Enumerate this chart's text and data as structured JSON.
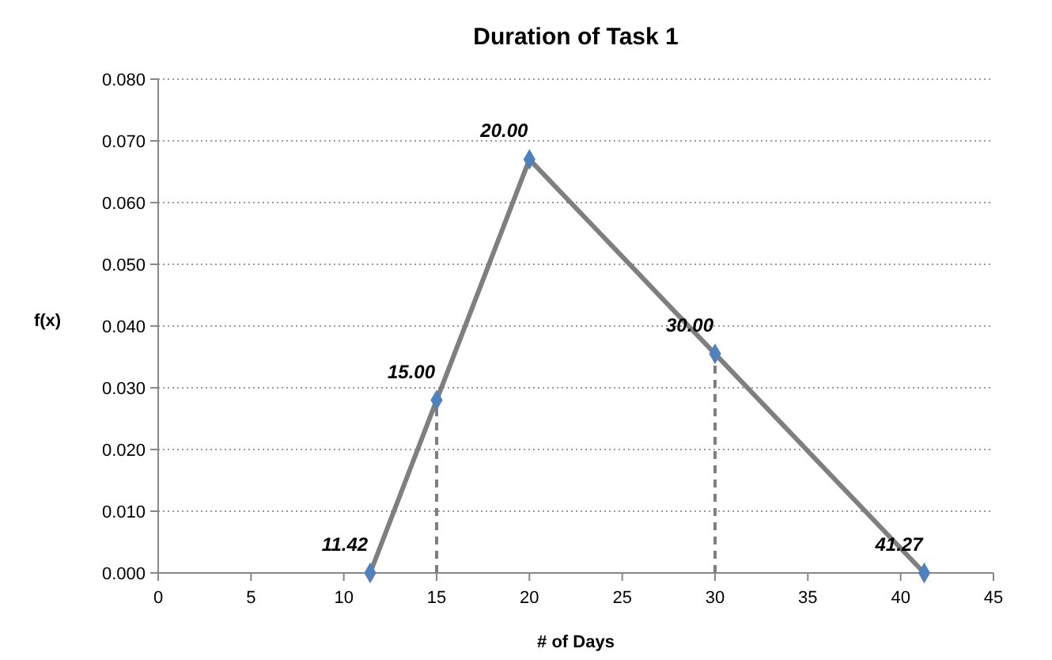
{
  "chart_data": {
    "type": "line",
    "title": "Duration of Task 1",
    "xlabel": "# of Days",
    "ylabel": "f(x)",
    "xlim": [
      0,
      45
    ],
    "xticks": [
      0,
      5,
      10,
      15,
      20,
      25,
      30,
      35,
      40,
      45
    ],
    "ylim": [
      0,
      0.08
    ],
    "yticks": [
      {
        "value": 0,
        "label": "0.000"
      },
      {
        "value": 0.01,
        "label": "0.010"
      },
      {
        "value": 0.02,
        "label": "0.020"
      },
      {
        "value": 0.03,
        "label": "0.030"
      },
      {
        "value": 0.04,
        "label": "0.040"
      },
      {
        "value": 0.05,
        "label": "0.050"
      },
      {
        "value": 0.06,
        "label": "0.060"
      },
      {
        "value": 0.07,
        "label": "0.070"
      },
      {
        "value": 0.08,
        "label": "0.080"
      }
    ],
    "grid": "y",
    "series": [
      {
        "color": "#7f7f7f",
        "line_style": "dashed",
        "x": [
          15,
          15
        ],
        "values": [
          0,
          0.028
        ]
      },
      {
        "color": "#7f7f7f",
        "line_style": "dashed",
        "x": [
          30,
          30
        ],
        "values": [
          0,
          0.0355
        ]
      },
      {
        "color": "#7f7f7f",
        "marker": "diamond",
        "line_style": "solid",
        "x": [
          11.42,
          15,
          20,
          30,
          41.27
        ],
        "values": [
          0,
          0.028,
          0.067,
          0.0355,
          0
        ]
      }
    ],
    "annotations": [
      {
        "text": "11.42",
        "x": 11.42,
        "y": 0
      },
      {
        "text": "15.00",
        "x": 15,
        "y": 0.028
      },
      {
        "text": "20.00",
        "x": 20,
        "y": 0.067
      },
      {
        "text": "30.00",
        "x": 30,
        "y": 0.0355
      },
      {
        "text": "41.27",
        "x": 41.27,
        "y": 0
      }
    ]
  }
}
